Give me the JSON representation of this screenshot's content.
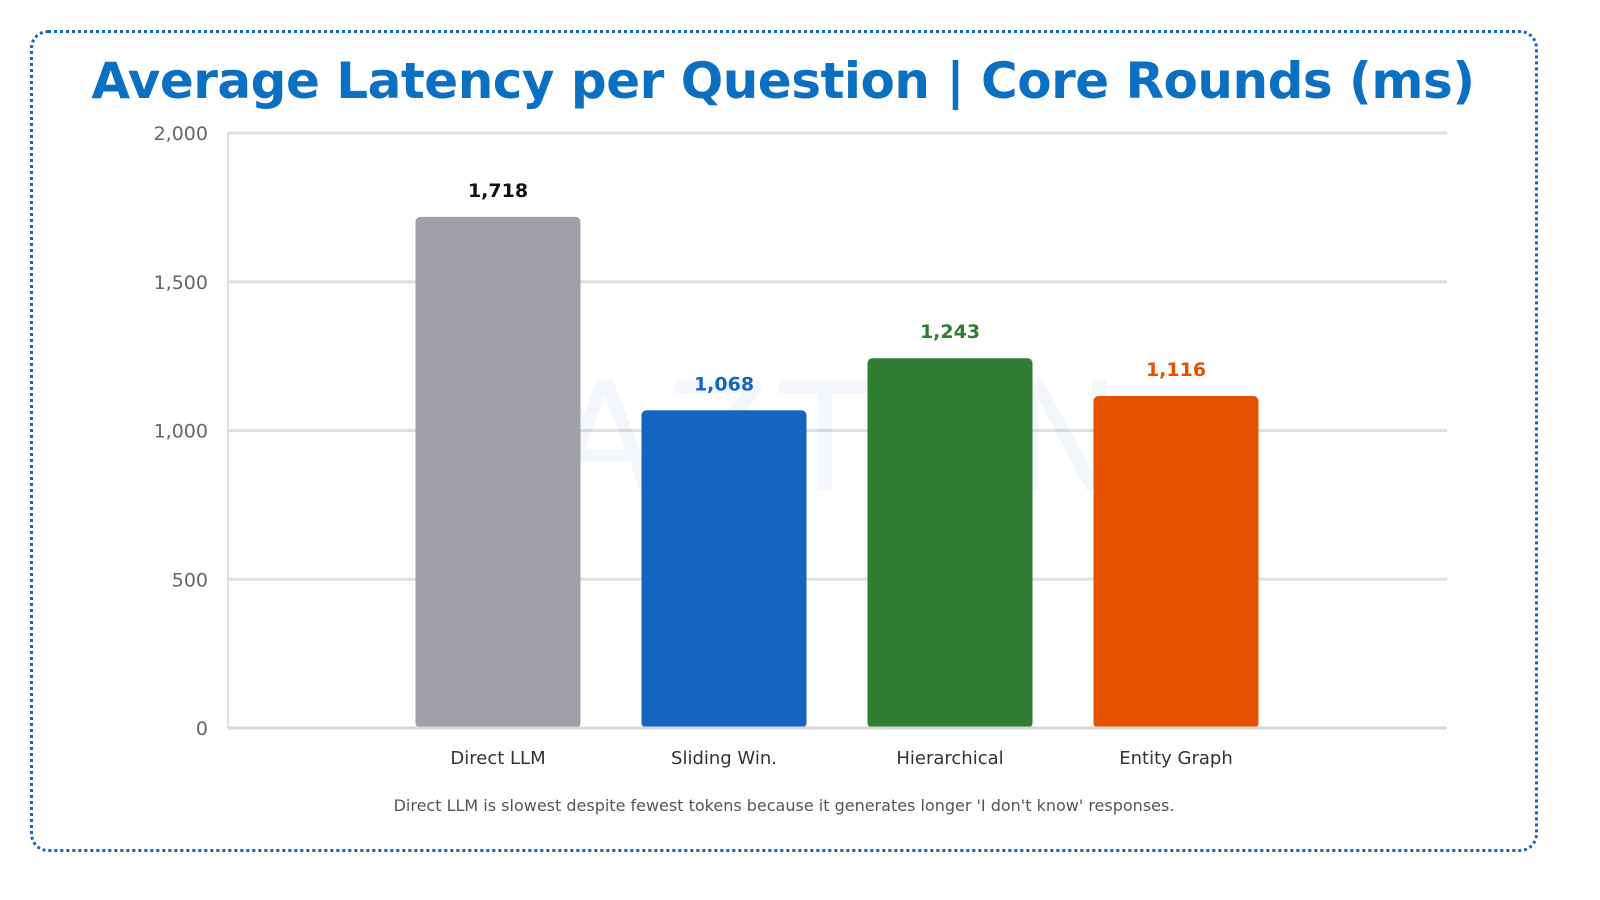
{
  "title": "Average Latency per Question | Core Rounds (ms)",
  "watermark": "CAZTON",
  "caption": "Direct LLM is slowest despite fewest tokens because it generates longer 'I don't know' responses.",
  "chart_data": {
    "type": "bar",
    "title": "Average Latency per Question | Core Rounds (ms)",
    "categories": [
      "Direct LLM",
      "Sliding Win.",
      "Hierarchical",
      "Entity Graph"
    ],
    "values": [
      1718,
      1068,
      1243,
      1116
    ],
    "data_labels": [
      "1,718",
      "1,068",
      "1,243",
      "1,116"
    ],
    "colors": [
      "#a0a1a8",
      "#1565c0",
      "#2e7d32",
      "#e65100"
    ],
    "label_colors": [
      "#111111",
      "#1565c0",
      "#2e7d32",
      "#e65100"
    ],
    "ylim": [
      0,
      2000
    ],
    "yticks": [
      0,
      500,
      1000,
      1500,
      2000
    ],
    "ytick_labels": [
      "0",
      "500",
      "1,000",
      "1,500",
      "2,000"
    ],
    "grid": true,
    "xlabel": "",
    "ylabel": ""
  }
}
